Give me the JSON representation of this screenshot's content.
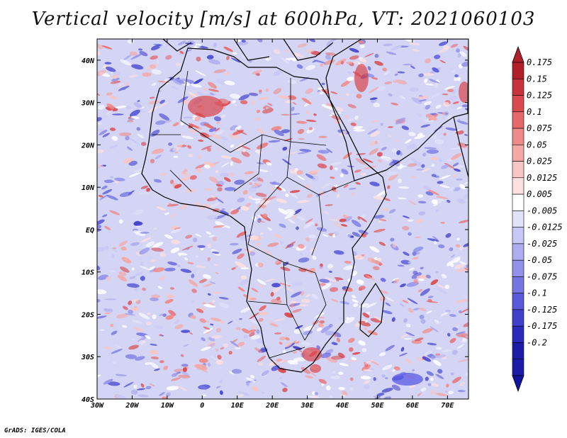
{
  "title": "Vertical velocity [m/s] at 600hPa, VT: 2021060103",
  "credit": "GrADS: IGES/COLA",
  "map": {
    "region": "Africa",
    "lon_range": [
      -30,
      76
    ],
    "lat_range": [
      -40,
      45
    ],
    "lon_ticks": [
      {
        "value": -30,
        "label": "30W"
      },
      {
        "value": -20,
        "label": "20W"
      },
      {
        "value": -10,
        "label": "10W"
      },
      {
        "value": 0,
        "label": "0"
      },
      {
        "value": 10,
        "label": "10E"
      },
      {
        "value": 20,
        "label": "20E"
      },
      {
        "value": 30,
        "label": "30E"
      },
      {
        "value": 40,
        "label": "40E"
      },
      {
        "value": 50,
        "label": "50E"
      },
      {
        "value": 60,
        "label": "60E"
      },
      {
        "value": 70,
        "label": "70E"
      }
    ],
    "lat_ticks": [
      {
        "value": 40,
        "label": "40N"
      },
      {
        "value": 30,
        "label": "30N"
      },
      {
        "value": 20,
        "label": "20N"
      },
      {
        "value": 10,
        "label": "10N"
      },
      {
        "value": 0,
        "label": "EQ"
      },
      {
        "value": -10,
        "label": "10S"
      },
      {
        "value": -20,
        "label": "20S"
      },
      {
        "value": -30,
        "label": "30S"
      },
      {
        "value": -40,
        "label": "40S"
      }
    ]
  },
  "colorbar": {
    "levels": [
      {
        "label": "0.175",
        "color": "#b8252c"
      },
      {
        "label": "0.15",
        "color": "#c8323a"
      },
      {
        "label": "0.125",
        "color": "#d84a4e"
      },
      {
        "label": "0.1",
        "color": "#e5686a"
      },
      {
        "label": "0.075",
        "color": "#ee8a88"
      },
      {
        "label": "0.05",
        "color": "#f3a8a6"
      },
      {
        "label": "0.025",
        "color": "#f8c6c4"
      },
      {
        "label": "0.0125",
        "color": "#fce0df"
      },
      {
        "label": "0.005",
        "color": "#ffffff"
      },
      {
        "label": "-0.005",
        "color": "#e2e2fb"
      },
      {
        "label": "-0.0125",
        "color": "#c8c8f6"
      },
      {
        "label": "-0.025",
        "color": "#adadf0"
      },
      {
        "label": "-0.05",
        "color": "#9292ea"
      },
      {
        "label": "-0.075",
        "color": "#7676e2"
      },
      {
        "label": "-0.1",
        "color": "#5a5ad8"
      },
      {
        "label": "-0.125",
        "color": "#4040cc"
      },
      {
        "label": "-0.175",
        "color": "#2a2abc"
      },
      {
        "label": "-0.2",
        "color": "#1c1ca8"
      }
    ],
    "top_color": "#b02028",
    "bottom_color": "#1414a0"
  },
  "field": {
    "up_color": "#d8444a",
    "down_color": "#5a5ae6",
    "background_color": "#d4d4f4"
  }
}
